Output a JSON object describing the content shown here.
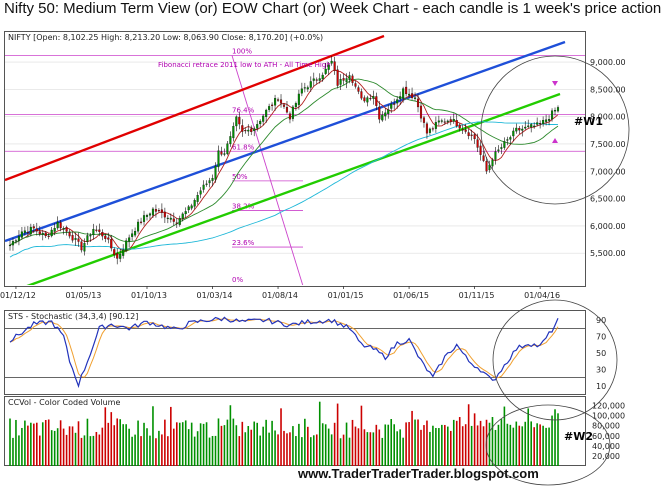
{
  "title": "Nifty 50: Medium Term View (or) EOW Chart (or) Week Chart - each candle is 1 week's price action",
  "website": "www.TraderTraderTrader.blogspot.com",
  "colors": {
    "up": "#009000",
    "down": "#cc0000",
    "stoch_k": "#2233bb",
    "stoch_d": "#f0a030",
    "fib": "#cc44cc",
    "channel_red": "#e00000",
    "channel_blue": "#1e4fd8",
    "channel_green": "#22cc00",
    "ma_short": "#b22020",
    "ma_mid": "#2d8a2d",
    "ma_long": "#20b8d8",
    "grid": "#dddddd"
  },
  "chart_data": [
    {
      "type": "candlestick",
      "panel_label": "NIFTY [Open: 8,102.25  High: 8,213.20  Low: 8,063.90  Close: 8,170.20] (+0.0%)",
      "x_ticks": [
        "01/12/12",
        "01/05/13",
        "01/10/13",
        "01/03/14",
        "01/08/14",
        "01/01/15",
        "01/06/15",
        "01/11/15",
        "01/04/16"
      ],
      "y_ticks": [
        "5,500.00",
        "6,000.00",
        "6,500.00",
        "7,000.00",
        "7,500.00",
        "8,000.00",
        "8,500.00",
        "9,000.00"
      ],
      "ylim": [
        4900,
        9550
      ],
      "close_path": [
        [
          0,
          5650
        ],
        [
          4,
          5900
        ],
        [
          8,
          5950
        ],
        [
          12,
          5800
        ],
        [
          16,
          6050
        ],
        [
          20,
          5850
        ],
        [
          24,
          5600
        ],
        [
          28,
          5950
        ],
        [
          32,
          5800
        ],
        [
          36,
          5400
        ],
        [
          40,
          5800
        ],
        [
          44,
          6100
        ],
        [
          48,
          6300
        ],
        [
          52,
          6200
        ],
        [
          56,
          6100
        ],
        [
          60,
          6300
        ],
        [
          64,
          6650
        ],
        [
          68,
          6900
        ],
        [
          70,
          7350
        ],
        [
          72,
          7350
        ],
        [
          74,
          7600
        ],
        [
          76,
          7950
        ],
        [
          78,
          7700
        ],
        [
          82,
          7800
        ],
        [
          86,
          8100
        ],
        [
          90,
          8350
        ],
        [
          94,
          8000
        ],
        [
          98,
          8500
        ],
        [
          102,
          8650
        ],
        [
          106,
          8850
        ],
        [
          108,
          9000
        ],
        [
          110,
          8600
        ],
        [
          114,
          8800
        ],
        [
          118,
          8300
        ],
        [
          122,
          8400
        ],
        [
          124,
          8000
        ],
        [
          128,
          8200
        ],
        [
          132,
          8500
        ],
        [
          136,
          8350
        ],
        [
          140,
          7700
        ],
        [
          144,
          7900
        ],
        [
          148,
          7950
        ],
        [
          152,
          7800
        ],
        [
          156,
          7600
        ],
        [
          158,
          7300
        ],
        [
          160,
          7000
        ],
        [
          162,
          7250
        ],
        [
          166,
          7500
        ],
        [
          170,
          7750
        ],
        [
          174,
          7800
        ],
        [
          178,
          7850
        ],
        [
          181,
          8000
        ],
        [
          184,
          8170
        ]
      ],
      "annotations": {
        "fib_title": "Fibonacci retrace 2011 low to ATH - All Time High",
        "fib_levels": [
          "100%",
          "76.4%",
          "61.8%",
          "50%",
          "38.2%",
          "23.6%",
          "0%"
        ],
        "wave_label": "#W1"
      }
    },
    {
      "type": "line",
      "panel_label": "STS - Stochastic (34,3,4) [90.12]",
      "y_ticks": [
        "10",
        "30",
        "50",
        "70",
        "90"
      ],
      "ylim": [
        0,
        100
      ],
      "overbought": 80,
      "oversold": 20
    },
    {
      "type": "bar",
      "panel_label": "CCVol - Color Coded Volume",
      "y_ticks": [
        "20,000",
        "40,000",
        "60,000",
        "80,000",
        "100,000",
        "120,000"
      ],
      "ylim": [
        0,
        135000
      ],
      "wave_label": "#W2"
    }
  ]
}
